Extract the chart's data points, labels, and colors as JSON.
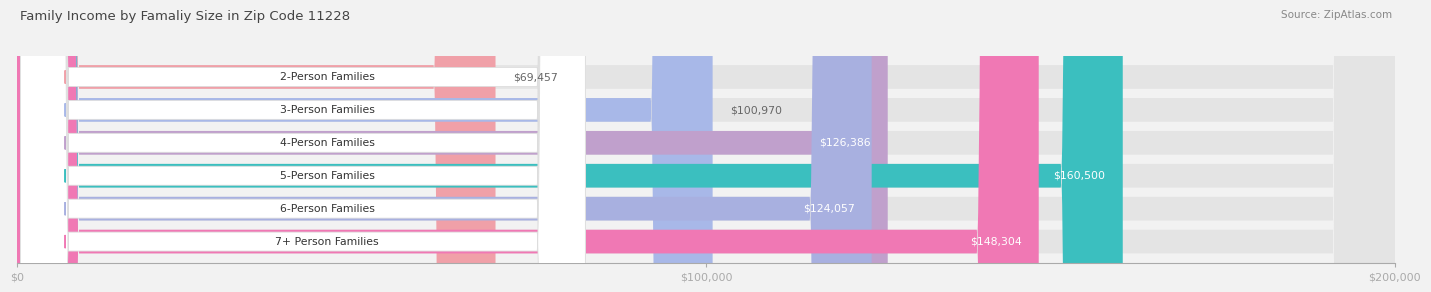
{
  "title": "Family Income by Famaliy Size in Zip Code 11228",
  "source": "Source: ZipAtlas.com",
  "categories": [
    "2-Person Families",
    "3-Person Families",
    "4-Person Families",
    "5-Person Families",
    "6-Person Families",
    "7+ Person Families"
  ],
  "values": [
    69457,
    100970,
    126386,
    160500,
    124057,
    148304
  ],
  "labels": [
    "$69,457",
    "$100,970",
    "$126,386",
    "$160,500",
    "$124,057",
    "$148,304"
  ],
  "bar_colors": [
    "#f0a0a8",
    "#a8b8e8",
    "#c0a0cc",
    "#3bbfbf",
    "#a8b0e0",
    "#f078b4"
  ],
  "label_inside": [
    false,
    false,
    true,
    true,
    true,
    true
  ],
  "xlim": [
    0,
    200000
  ],
  "xtick_labels": [
    "$0",
    "$100,000",
    "$200,000"
  ],
  "bg_color": "#f2f2f2",
  "row_bg_color": "#e4e4e4",
  "badge_color": "#ffffff",
  "title_color": "#444444",
  "source_color": "#888888",
  "axis_color": "#aaaaaa",
  "label_outside_color": "#666666",
  "label_inside_color": "#ffffff"
}
